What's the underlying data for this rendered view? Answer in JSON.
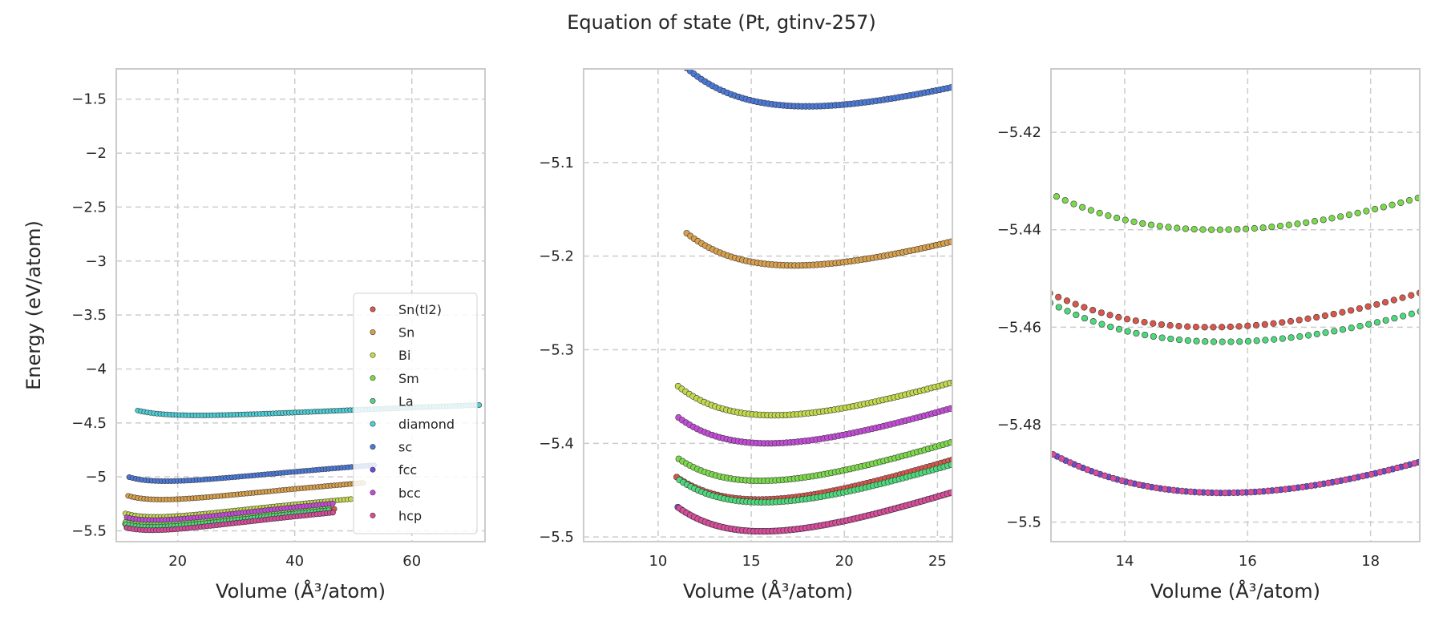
{
  "figure": {
    "title": "Equation of state (Pt, gtinv-257)"
  },
  "chart_data": [
    {
      "type": "scatter",
      "xlabel": "Volume (Å³/atom)",
      "ylabel": "Energy (eV/atom)",
      "xlim": [
        9.5,
        72.5
      ],
      "ylim": [
        -5.6,
        -1.22
      ],
      "xticks": [
        20,
        40,
        60
      ],
      "yticks": [
        -5.5,
        -5.0,
        -4.5,
        -4.0,
        -3.5,
        -3.0,
        -2.5,
        -2.0,
        -1.5
      ],
      "grid": true,
      "legend": "lower-right",
      "series": [
        {
          "name": "Sn(tI2)",
          "color": "#d9564b",
          "v0": 15.4,
          "e0": -5.46,
          "B": 1.7,
          "vmin": 11.0,
          "vmax": 47.0
        },
        {
          "name": "Sn",
          "color": "#d9a04b",
          "v0": 17.3,
          "e0": -5.21,
          "B": 1.65,
          "vmin": 11.5,
          "vmax": 52.0
        },
        {
          "name": "Bi",
          "color": "#c3d94b",
          "v0": 16.2,
          "e0": -5.37,
          "B": 1.7,
          "vmin": 11.0,
          "vmax": 50.0
        },
        {
          "name": "Sm",
          "color": "#7bd94b",
          "v0": 15.5,
          "e0": -5.44,
          "B": 1.7,
          "vmin": 11.0,
          "vmax": 46.0
        },
        {
          "name": "La",
          "color": "#4bd97b",
          "v0": 15.6,
          "e0": -5.463,
          "B": 1.7,
          "vmin": 11.0,
          "vmax": 46.0
        },
        {
          "name": "diamond",
          "color": "#4bcfd9",
          "v0": 23.5,
          "e0": -4.43,
          "B": 1.0,
          "vmin": 13.0,
          "vmax": 72.0
        },
        {
          "name": "sc",
          "color": "#4b79d9",
          "v0": 18.0,
          "e0": -5.04,
          "B": 1.6,
          "vmin": 11.5,
          "vmax": 54.0
        },
        {
          "name": "fcc",
          "color": "#6b4bd9",
          "v0": 15.6,
          "e0": -5.494,
          "B": 1.75,
          "vmin": 11.0,
          "vmax": 46.5
        },
        {
          "name": "bcc",
          "color": "#c44bd9",
          "v0": 15.9,
          "e0": -5.4,
          "B": 1.7,
          "vmin": 11.0,
          "vmax": 46.5
        },
        {
          "name": "hcp",
          "color": "#d94b9b",
          "v0": 15.6,
          "e0": -5.494,
          "B": 1.75,
          "vmin": 11.0,
          "vmax": 47.0
        }
      ]
    },
    {
      "type": "scatter",
      "xlabel": "Volume (Å³/atom)",
      "ylabel": "",
      "xlim": [
        6.0,
        25.8
      ],
      "ylim": [
        -5.505,
        -5.0
      ],
      "xticks": [
        10,
        15,
        20,
        25
      ],
      "yticks": [
        -5.5,
        -5.4,
        -5.3,
        -5.2,
        -5.1
      ],
      "grid": true
    },
    {
      "type": "scatter",
      "xlabel": "Volume (Å³/atom)",
      "ylabel": "",
      "xlim": [
        12.8,
        18.8
      ],
      "ylim": [
        -5.504,
        -5.407
      ],
      "xticks": [
        14,
        16,
        18
      ],
      "yticks": [
        -5.5,
        -5.48,
        -5.46,
        -5.44,
        -5.42
      ],
      "grid": true
    }
  ]
}
